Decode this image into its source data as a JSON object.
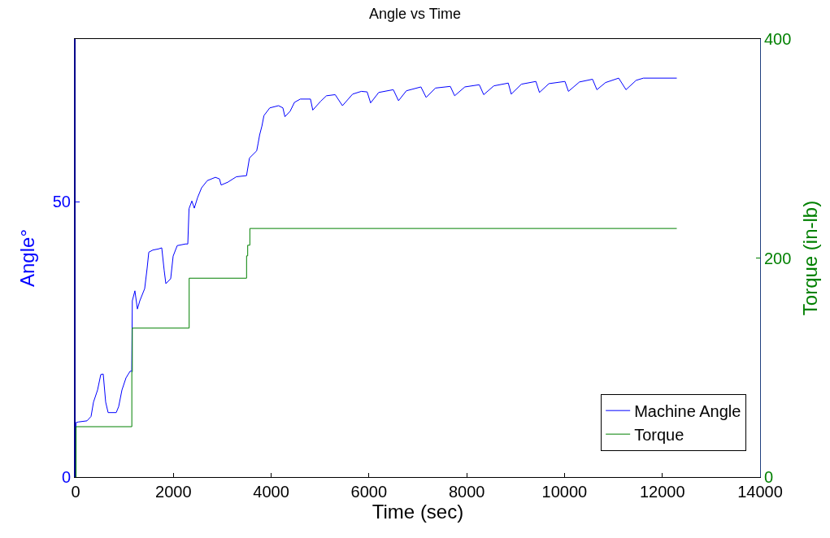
{
  "chart_data": {
    "type": "line",
    "title": "Angle vs Time",
    "xlabel": "Time (sec)",
    "ylabel": "Angle°",
    "y2label": "Torque (in-lb)",
    "xlim": [
      0,
      14000
    ],
    "xticks": [
      0,
      2000,
      4000,
      6000,
      8000,
      10000,
      12000,
      14000
    ],
    "ylim": [
      0,
      79.5
    ],
    "yticks": [
      0,
      50
    ],
    "y2lim": [
      0,
      400
    ],
    "y2ticks": [
      0,
      200,
      400
    ],
    "grid": false,
    "legend": "bottom right",
    "marker": "none",
    "line_style": "solid",
    "series": [
      {
        "name": "Machine Angle",
        "color": "#0000ff",
        "x": [
          0,
          10,
          60,
          233,
          316,
          366,
          449,
          515,
          565,
          615,
          665,
          831,
          881,
          948,
          1031,
          1114,
          1148,
          1160,
          1213,
          1264,
          1314,
          1413,
          1463,
          1497,
          1580,
          1696,
          1762,
          1812,
          1846,
          1945,
          1995,
          2078,
          2245,
          2295,
          2320,
          2378,
          2428,
          2494,
          2577,
          2694,
          2860,
          2943,
          2977,
          3110,
          3288,
          3496,
          3556,
          3704,
          3734,
          3764,
          3811,
          3852,
          3972,
          4150,
          4240,
          4281,
          4388,
          4476,
          4596,
          4804,
          4851,
          5012,
          5131,
          5309,
          5458,
          5666,
          5844,
          5963,
          6034,
          6200,
          6498,
          6605,
          6765,
          7063,
          7170,
          7361,
          7664,
          7753,
          7961,
          8257,
          8347,
          8554,
          8850,
          8910,
          9118,
          9415,
          9487,
          9681,
          10009,
          10080,
          10305,
          10573,
          10662,
          10840,
          11108,
          11257,
          11465,
          11613,
          12296
        ],
        "values": [
          0,
          9.9,
          10,
          10.2,
          11,
          13.6,
          15.8,
          18.6,
          18.7,
          13.6,
          11.7,
          11.7,
          12.8,
          15.8,
          18,
          19.2,
          19.2,
          32,
          33.8,
          30.5,
          32,
          34.2,
          37.9,
          40.8,
          41.2,
          41.4,
          41.6,
          37.5,
          35.1,
          36,
          40.1,
          42,
          42.3,
          42.3,
          48.7,
          50.1,
          48.8,
          50.7,
          52.5,
          53.8,
          54.4,
          54.1,
          53,
          53.5,
          54.5,
          54.7,
          57.9,
          59.2,
          60.6,
          62.1,
          63.7,
          65.6,
          67,
          67.4,
          67,
          65.4,
          66.4,
          68,
          68.6,
          68.6,
          66.6,
          68.2,
          69.2,
          69.4,
          67.4,
          69.5,
          70,
          69.9,
          67.9,
          69.8,
          70.3,
          68.3,
          70.1,
          70.8,
          68.9,
          70.6,
          70.9,
          69.2,
          70.8,
          71.2,
          69.4,
          71,
          71.5,
          69.5,
          71.3,
          71.8,
          69.8,
          71.4,
          71.8,
          70,
          71.7,
          72.2,
          70.3,
          71.6,
          72.4,
          70.3,
          72,
          72.4,
          72.4
        ]
      },
      {
        "name": "Torque",
        "type": "step",
        "axis": "y2",
        "color": "#008000",
        "x": [
          0,
          10,
          1150,
          1160,
          2323,
          3497,
          3520,
          3564,
          12296
        ],
        "values": [
          0,
          46,
          96,
          136,
          181.6,
          202,
          211.7,
          227,
          227
        ]
      }
    ]
  }
}
